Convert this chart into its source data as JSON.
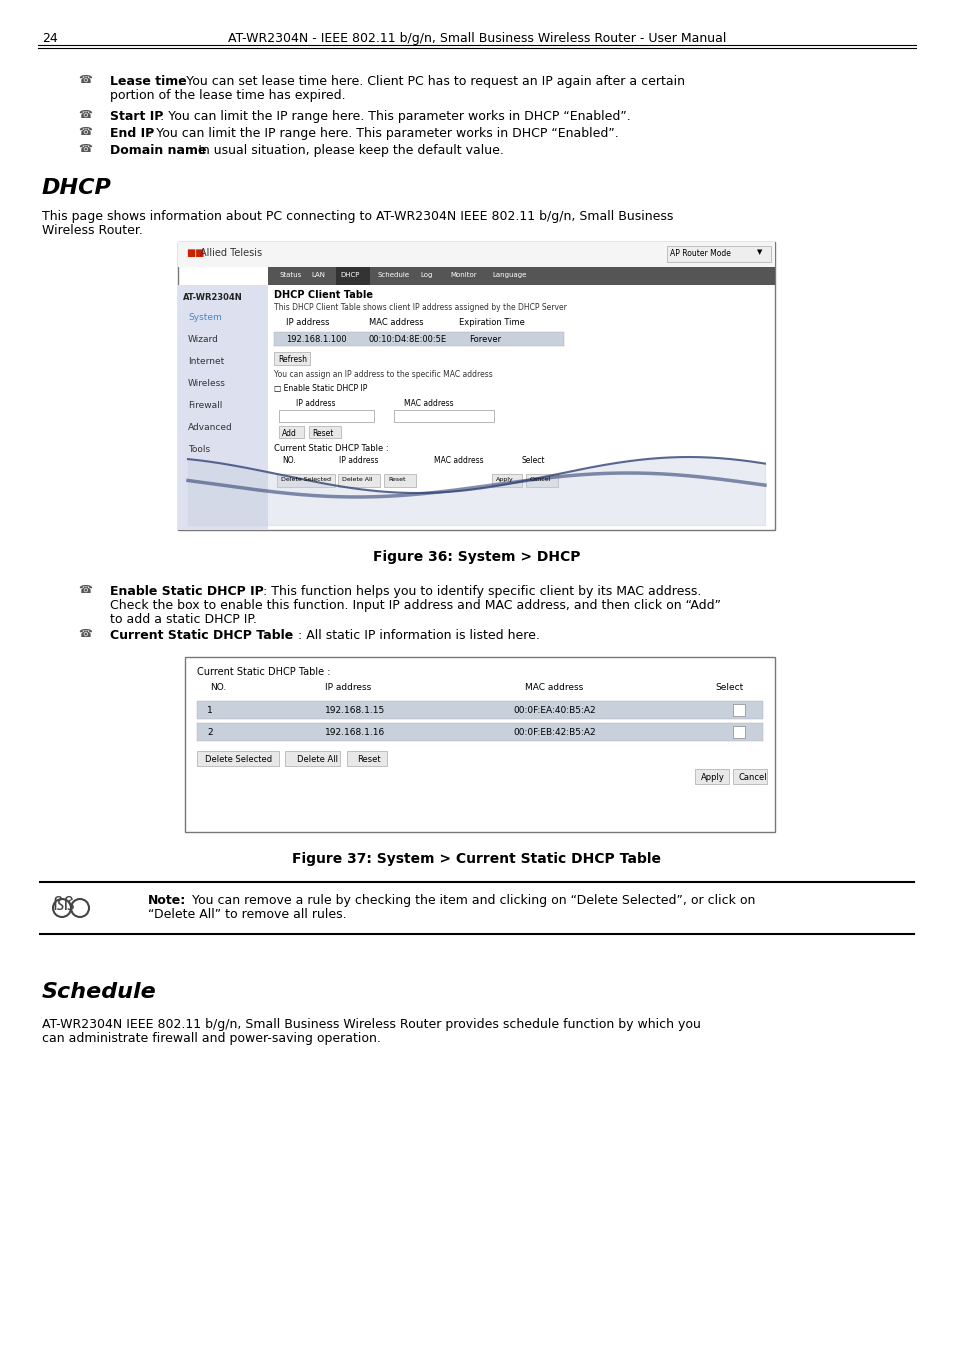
{
  "page_num": "24",
  "header_text": "AT-WR2304N - IEEE 802.11 b/g/n, Small Business Wireless Router - User Manual",
  "bg_color": "#ffffff",
  "section1_title": "DHCP",
  "section1_para_l1": "This page shows information about PC connecting to AT-WR2304N IEEE 802.11 b/g/n, Small Business",
  "section1_para_l2": "Wireless Router.",
  "fig36_caption": "Figure 36: System > DHCP",
  "fig37_caption": "Figure 37: System > Current Static DHCP Table",
  "note_bold": "Note:",
  "note_rest_l1": " You can remove a rule by checking the item and clicking on “Delete Selected”, or click on",
  "note_rest_l2": "“Delete All” to remove all rules.",
  "section2_title": "Schedule",
  "section2_para_l1": "AT-WR2304N IEEE 802.11 b/g/n, Small Business Wireless Router provides schedule function by which you",
  "section2_para_l2": "can administrate firewall and power-saving operation."
}
